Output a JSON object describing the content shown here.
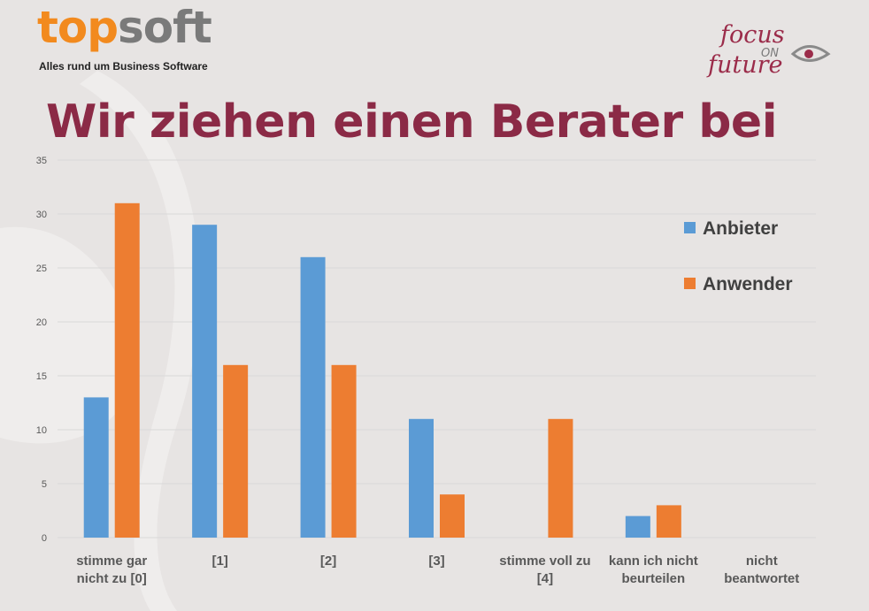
{
  "header": {
    "topsoft_logo": {
      "text_orange": "top",
      "text_gray": "soft",
      "tagline": "Alles rund um Business Software"
    },
    "focus_logo": {
      "line1": "focus",
      "line2": "ON",
      "line3": "future"
    },
    "title": "Wir ziehen einen Berater bei"
  },
  "colors": {
    "anbieter": "#5b9bd5",
    "anwender": "#ed7d31",
    "title": "#8b2a46",
    "grid": "#d9d9d9"
  },
  "chart_data": {
    "type": "bar",
    "categories": [
      [
        "stimme gar",
        "nicht zu [0]"
      ],
      [
        "[1]"
      ],
      [
        "[2]"
      ],
      [
        "[3]"
      ],
      [
        "stimme voll zu",
        "[4]"
      ],
      [
        "kann ich nicht",
        "beurteilen"
      ],
      [
        "nicht",
        "beantwortet"
      ]
    ],
    "series": [
      {
        "name": "Anbieter",
        "values": [
          13,
          29,
          26,
          11,
          0,
          2,
          0
        ]
      },
      {
        "name": "Anwender",
        "values": [
          31,
          16,
          16,
          4,
          11,
          3,
          0
        ]
      }
    ],
    "y_ticks": [
      "0",
      "5",
      "10",
      "15",
      "20",
      "25",
      "30",
      "35"
    ],
    "ylim": [
      0,
      35
    ],
    "grid": true,
    "legend_position": "top-right",
    "xlabel": "",
    "ylabel": ""
  }
}
